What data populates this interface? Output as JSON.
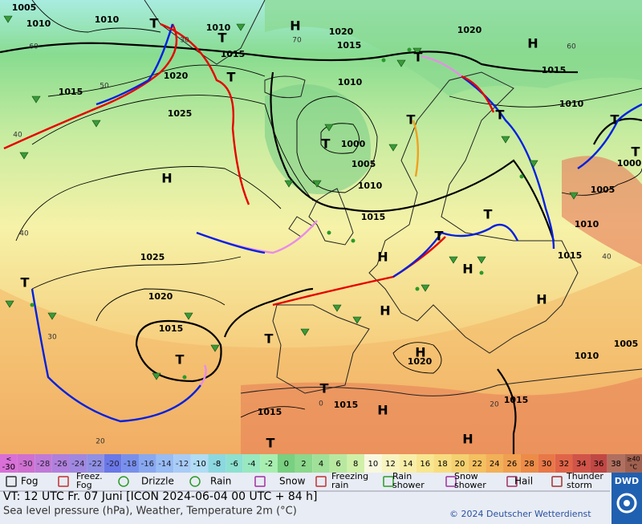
{
  "map": {
    "pressure_labels": [
      "1005",
      "1010",
      "1010",
      "1010",
      "1015",
      "1020",
      "1015",
      "1020",
      "1015",
      "1010",
      "1010",
      "1000",
      "1005",
      "1010",
      "1015",
      "1020",
      "1025",
      "1015",
      "1025",
      "1020",
      "1015",
      "1015",
      "1010",
      "1005",
      "1000",
      "1005",
      "1010",
      "1020",
      "1015",
      "1015",
      "1015"
    ],
    "temperature_labels": [
      "40",
      "60",
      "50",
      "40",
      "30",
      "20",
      "40",
      "20",
      "0",
      "60",
      "30",
      "70"
    ],
    "centers": [
      "T",
      "H",
      "T",
      "H",
      "T",
      "T",
      "T",
      "T",
      "T",
      "H",
      "T",
      "T",
      "T",
      "T",
      "H",
      "H",
      "H",
      "H",
      "T",
      "T",
      "H",
      "T",
      "T",
      "H",
      "T",
      "H"
    ]
  },
  "color_scale": {
    "first": {
      "top": "<",
      "bottom": "-30"
    },
    "values": [
      "-30",
      "-28",
      "-26",
      "-24",
      "-22",
      "-20",
      "-18",
      "-16",
      "-14",
      "-12",
      "-10",
      "-8",
      "-6",
      "-4",
      "-2",
      "0",
      "2",
      "4",
      "6",
      "8",
      "10",
      "12",
      "14",
      "16",
      "18",
      "20",
      "22",
      "24",
      "26",
      "28",
      "30",
      "32",
      "34",
      "36",
      "38"
    ],
    "colors": [
      "#d070d0",
      "#c07ad8",
      "#b080dc",
      "#a088e0",
      "#9090e4",
      "#6a78e8",
      "#7890ec",
      "#88a8f0",
      "#98bcf4",
      "#a8ccf6",
      "#b0dcf4",
      "#8cd8e0",
      "#8ee0d0",
      "#98e8c0",
      "#a8eeb0",
      "#78d080",
      "#8cd88c",
      "#a0e098",
      "#b8e8a0",
      "#d0f0a8",
      "#f8f8e0",
      "#f8f4c0",
      "#f8eea8",
      "#f8e690",
      "#f8dc80",
      "#f4d070",
      "#f4c060",
      "#f2b058",
      "#f0a050",
      "#ec8c48",
      "#e87848",
      "#e06448",
      "#d05448",
      "#c04844",
      "#b07060"
    ],
    "last": {
      "top": "≥40",
      "bottom": "°C"
    }
  },
  "legend": {
    "items": [
      {
        "lines": [
          "Fog"
        ]
      },
      {
        "lines": [
          "Freez.",
          "Fog"
        ]
      },
      {
        "lines": [
          "Drizzle"
        ]
      },
      {
        "lines": [
          "Rain"
        ]
      },
      {
        "lines": [
          "Snow"
        ]
      },
      {
        "lines": [
          "Freezing",
          "rain"
        ]
      },
      {
        "lines": [
          "Rain",
          "shower"
        ]
      },
      {
        "lines": [
          "Snow",
          "shower"
        ]
      },
      {
        "lines": [
          "Hail"
        ]
      },
      {
        "lines": [
          "Thunder",
          "storm"
        ]
      }
    ]
  },
  "footer": {
    "valid_time": "VT: 12 UTC Fr.  07 Juni [ICON 2024-06-04  00 UTC + 84 h]",
    "description": "Sea level pressure (hPa), Weather, Temperature 2m (°C)",
    "copyright": "© 2024 Deutscher Wetterdienst",
    "logo": "DWD"
  }
}
